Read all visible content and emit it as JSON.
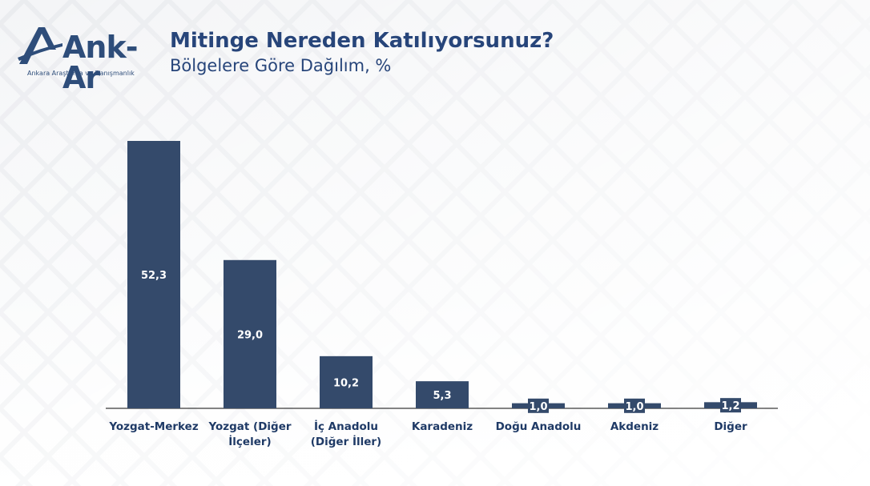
{
  "logo": {
    "text": "Ank-Ar",
    "tagline": "Ankara Araştırma ve Danışmanlık"
  },
  "header": {
    "title": "Mitinge Nereden Katılıyorsunuz?",
    "subtitle": "Bölgelere Göre Dağılım, %"
  },
  "colors": {
    "bar": "#344a6b",
    "title": "#27457a",
    "label_text": "#1f3a66"
  },
  "chart_data": {
    "type": "bar",
    "title": "Mitinge Nereden Katılıyorsunuz?",
    "subtitle": "Bölgelere Göre Dağılım, %",
    "categories": [
      [
        "Yozgat-Merkez"
      ],
      [
        "Yozgat (Diğer",
        "İlçeler)"
      ],
      [
        "İç Anadolu",
        "(Diğer İller)"
      ],
      [
        "Karadeniz"
      ],
      [
        "Doğu Anadolu"
      ],
      [
        "Akdeniz"
      ],
      [
        "Diğer"
      ]
    ],
    "values": [
      52.3,
      29.0,
      10.2,
      5.3,
      1.0,
      1.0,
      1.2
    ],
    "value_labels": [
      "52,3",
      "29,0",
      "10,2",
      "5,3",
      "1,0",
      "1,0",
      "1,2"
    ],
    "ylim": [
      0,
      52.3
    ],
    "grid": false,
    "legend": "none"
  }
}
